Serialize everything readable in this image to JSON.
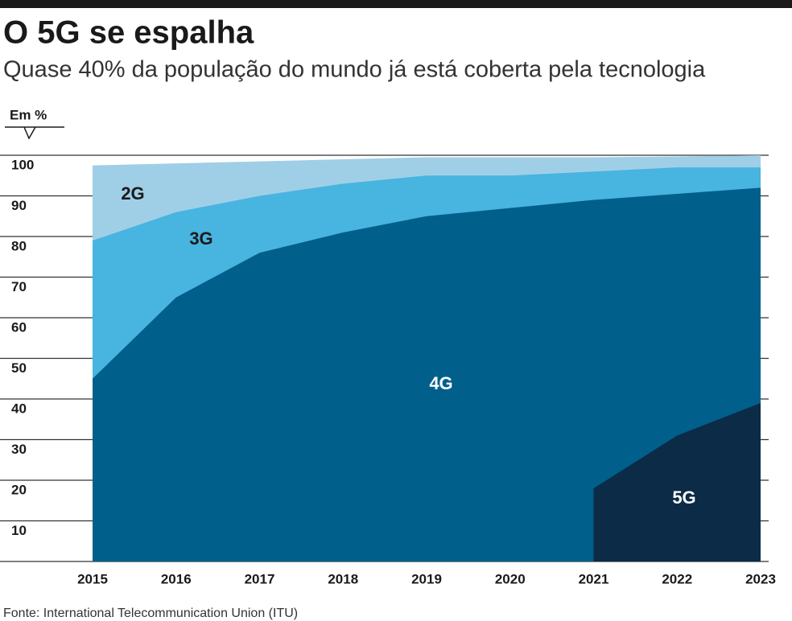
{
  "chart_data": {
    "type": "area",
    "title": "O 5G se espalha",
    "subtitle": "Quase 40% da população do mundo já está coberta pela tecnologia",
    "y_label": "Em %",
    "source": "Fonte: International Telecommunication Union (ITU)",
    "categories": [
      "2015",
      "2016",
      "2017",
      "2018",
      "2019",
      "2020",
      "2021",
      "2022",
      "2023"
    ],
    "series": [
      {
        "name": "2G",
        "color": "#9fcfe7",
        "label_color": "#1a1a1a",
        "values": [
          97.5,
          98,
          98.5,
          99,
          99.5,
          99.5,
          99.5,
          99.7,
          100
        ]
      },
      {
        "name": "3G",
        "color": "#48b4e0",
        "label_color": "#1a1a1a",
        "values": [
          79,
          86,
          90,
          93,
          95,
          95,
          96,
          97,
          97
        ]
      },
      {
        "name": "4G",
        "color": "#005f8b",
        "label_color": "#ffffff",
        "values": [
          45,
          65,
          76,
          81,
          85,
          87,
          89,
          90.5,
          92
        ]
      },
      {
        "name": "5G",
        "color": "#0b2b46",
        "label_color": "#ffffff",
        "values": [
          null,
          null,
          null,
          null,
          null,
          null,
          18,
          31,
          39
        ]
      }
    ],
    "ylim": [
      0,
      100
    ],
    "yticks": [
      10,
      20,
      30,
      40,
      50,
      60,
      70,
      80,
      90,
      100
    ],
    "grid": true
  }
}
